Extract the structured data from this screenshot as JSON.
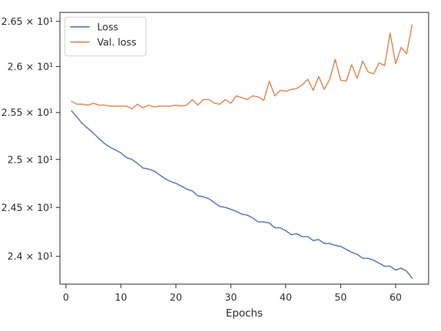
{
  "chart_data": {
    "type": "line",
    "title": "",
    "xlabel": "Epochs",
    "ylabel": "",
    "yscale": "log",
    "xlim": [
      -1.1,
      66
    ],
    "ylim": [
      23.72,
      26.6
    ],
    "grid": false,
    "legend_position": "top-left",
    "x_ticks": [
      {
        "value": 0,
        "label": "0"
      },
      {
        "value": 10,
        "label": "10"
      },
      {
        "value": 20,
        "label": "20"
      },
      {
        "value": 30,
        "label": "30"
      },
      {
        "value": 40,
        "label": "40"
      },
      {
        "value": 50,
        "label": "50"
      },
      {
        "value": 60,
        "label": "60"
      }
    ],
    "y_ticks": [
      {
        "value": 24.0,
        "label": "2.4 × 10¹"
      },
      {
        "value": 24.5,
        "label": "2.45 × 10¹"
      },
      {
        "value": 25.0,
        "label": "2.5 × 10¹"
      },
      {
        "value": 25.5,
        "label": "2.55 × 10¹"
      },
      {
        "value": 26.0,
        "label": "2.6 × 10¹"
      },
      {
        "value": 26.5,
        "label": "2.65 × 10¹"
      }
    ],
    "x": [
      1,
      2,
      3,
      4,
      5,
      6,
      7,
      8,
      9,
      10,
      11,
      12,
      13,
      14,
      15,
      16,
      17,
      18,
      19,
      20,
      21,
      22,
      23,
      24,
      25,
      26,
      27,
      28,
      29,
      30,
      31,
      32,
      33,
      34,
      35,
      36,
      37,
      38,
      39,
      40,
      41,
      42,
      43,
      44,
      45,
      46,
      47,
      48,
      49,
      50,
      51,
      52,
      53,
      54,
      55,
      56,
      57,
      58,
      59,
      60,
      61,
      62,
      63
    ],
    "series": [
      {
        "name": "Loss",
        "color": "#4c72b0",
        "values": [
          25.52,
          25.45,
          25.38,
          25.33,
          25.28,
          25.22,
          25.17,
          25.13,
          25.1,
          25.07,
          25.02,
          25.0,
          24.96,
          24.91,
          24.9,
          24.88,
          24.84,
          24.8,
          24.77,
          24.75,
          24.72,
          24.69,
          24.67,
          24.62,
          24.61,
          24.59,
          24.55,
          24.51,
          24.5,
          24.48,
          24.46,
          24.43,
          24.42,
          24.39,
          24.35,
          24.35,
          24.34,
          24.29,
          24.29,
          24.26,
          24.22,
          24.23,
          24.2,
          24.2,
          24.16,
          24.17,
          24.13,
          24.13,
          24.11,
          24.1,
          24.07,
          24.04,
          24.02,
          23.98,
          23.98,
          23.96,
          23.93,
          23.9,
          23.9,
          23.86,
          23.88,
          23.85,
          23.78
        ]
      },
      {
        "name": "Val. loss",
        "color": "#dd8452",
        "values": [
          25.62,
          25.59,
          25.59,
          25.58,
          25.6,
          25.58,
          25.58,
          25.57,
          25.57,
          25.57,
          25.57,
          25.54,
          25.59,
          25.55,
          25.58,
          25.56,
          25.57,
          25.57,
          25.57,
          25.58,
          25.57,
          25.58,
          25.64,
          25.58,
          25.64,
          25.64,
          25.6,
          25.59,
          25.64,
          25.6,
          25.68,
          25.66,
          25.64,
          25.68,
          25.67,
          25.63,
          25.84,
          25.68,
          25.74,
          25.73,
          25.75,
          25.76,
          25.8,
          25.86,
          25.74,
          25.89,
          25.75,
          25.86,
          26.08,
          25.85,
          25.84,
          26.02,
          25.87,
          26.06,
          25.94,
          25.92,
          26.04,
          26.01,
          26.37,
          26.03,
          26.21,
          26.14,
          26.46
        ]
      }
    ]
  }
}
